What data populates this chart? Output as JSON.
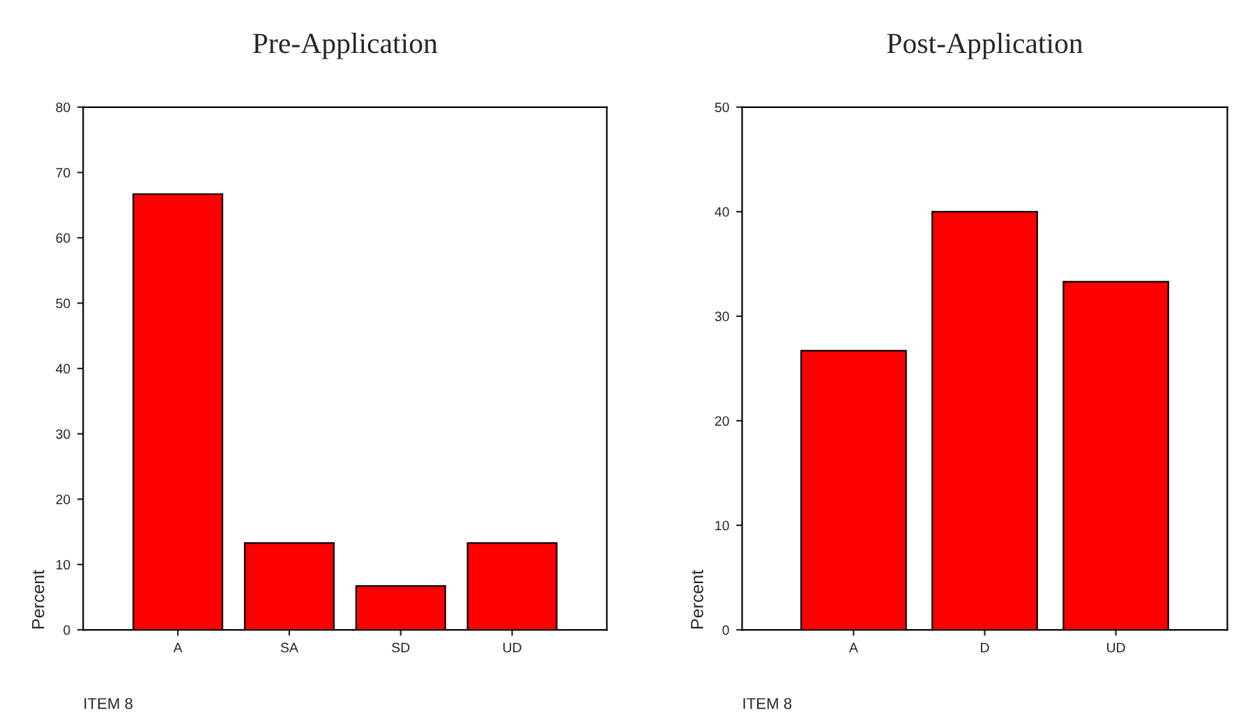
{
  "chart_data": [
    {
      "type": "bar",
      "title": "Pre-Application",
      "xlabel": "ITEM 8",
      "ylabel": "Percent",
      "categories": [
        "A",
        "SA",
        "SD",
        "UD"
      ],
      "values": [
        66.7,
        13.3,
        6.7,
        13.3
      ],
      "color": "#ff0000",
      "ylim": [
        0,
        80
      ],
      "yticks": [
        0,
        10,
        20,
        30,
        40,
        50,
        60,
        70,
        80
      ],
      "grid": false,
      "legend": false
    },
    {
      "type": "bar",
      "title": "Post-Application",
      "xlabel": "ITEM 8",
      "ylabel": "Percent",
      "categories": [
        "A",
        "D",
        "UD"
      ],
      "values": [
        26.7,
        40,
        33.3
      ],
      "color": "#ff0000",
      "ylim": [
        0,
        50
      ],
      "yticks": [
        0,
        10,
        20,
        30,
        40,
        50
      ],
      "grid": false,
      "legend": false
    }
  ]
}
